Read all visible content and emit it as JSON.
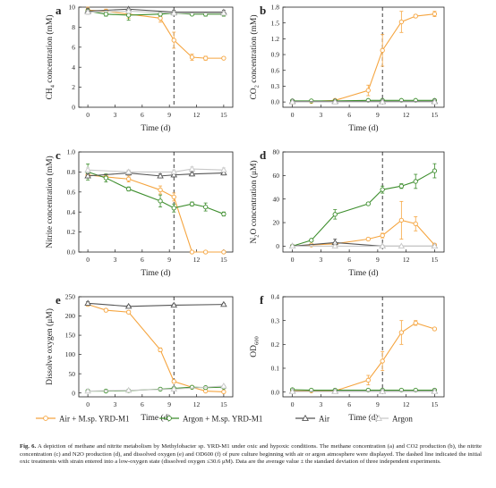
{
  "figure": {
    "caption_label": "Fig. 6.",
    "caption_text": "A depiction of methane and nitrite metabolism by Methylobacter sp. YRD-M1 under oxic and hypoxic conditions. The methane concentration (a) and CO2 production (b), the nitrite concentration (c) and N2O production (d), and dissolved oxygen (e) and OD600 (f) of pure culture beginning with air or argon atmosphere were displayed. The dashed line indicated the initial oxic treatments with strain entered into a low-oxygen state (dissolved oxygen ≤30.6 μM). Data are the average value ± the standard deviation of three independent experiments."
  },
  "legend": {
    "items": [
      {
        "label": "Air + M.sp. YRD-M1",
        "color": "#F5A540",
        "marker": "circle-open"
      },
      {
        "label": "Argon + M.sp. YRD-M1",
        "color": "#3E8E2E",
        "marker": "circle-open"
      },
      {
        "label": "Air",
        "color": "#555555",
        "marker": "triangle-open"
      },
      {
        "label": "Argon",
        "color": "#C8C8C8",
        "marker": "triangle-open"
      }
    ]
  },
  "chart_data": [
    {
      "panel": "a",
      "type": "line",
      "ylabel": "CH4 concentration (mM)",
      "xlabel": "Time (d)",
      "xlim": [
        -1,
        16
      ],
      "ylim": [
        0,
        10
      ],
      "xticks": [
        0,
        3,
        6,
        9,
        12,
        15
      ],
      "yticks": [
        0,
        2,
        4,
        6,
        8,
        10
      ],
      "dashed_x": 9.5,
      "series": [
        {
          "name": "Air + M.sp. YRD-M1",
          "x": [
            0,
            2,
            4.5,
            8,
            9.5,
            11.5,
            13,
            15
          ],
          "y": [
            9.7,
            9.6,
            9.3,
            8.9,
            6.7,
            5.0,
            4.9,
            4.9
          ],
          "err": [
            0.3,
            0.2,
            0.4,
            0.4,
            0.8,
            0.3,
            0.2,
            0.1
          ]
        },
        {
          "name": "Argon + M.sp. YRD-M1",
          "x": [
            0,
            2,
            4.5,
            8,
            9.5,
            11.5,
            13,
            15
          ],
          "y": [
            9.6,
            9.3,
            9.2,
            9.3,
            9.4,
            9.3,
            9.3,
            9.3
          ],
          "err": [
            0.2,
            0.2,
            0.5,
            0.2,
            0.2,
            0.1,
            0.2,
            0.2
          ]
        },
        {
          "name": "Air",
          "x": [
            0,
            4.5,
            9.5,
            15
          ],
          "y": [
            9.6,
            9.8,
            9.5,
            9.5
          ],
          "err": [
            0.3,
            0.2,
            0.2,
            0.2
          ]
        },
        {
          "name": "Argon",
          "x": [
            0,
            4.5,
            9.5,
            15
          ],
          "y": [
            9.5,
            9.6,
            9.4,
            9.4
          ],
          "err": [
            0.2,
            0.2,
            0.2,
            0.2
          ]
        }
      ]
    },
    {
      "panel": "b",
      "type": "line",
      "ylabel": "CO2 concentration (mM)",
      "xlabel": "Time (d)",
      "xlim": [
        -1,
        16
      ],
      "ylim": [
        -0.1,
        1.8
      ],
      "xticks": [
        0,
        3,
        6,
        9,
        12,
        15
      ],
      "yticks": [
        0.0,
        0.3,
        0.6,
        0.9,
        1.2,
        1.5,
        1.8
      ],
      "dashed_x": 9.5,
      "series": [
        {
          "name": "Air + M.sp. YRD-M1",
          "x": [
            0,
            2,
            4.5,
            8,
            9.5,
            11.5,
            13,
            15
          ],
          "y": [
            0.0,
            0.01,
            0.03,
            0.22,
            0.98,
            1.52,
            1.63,
            1.67
          ],
          "err": [
            0.01,
            0.01,
            0.02,
            0.1,
            0.3,
            0.2,
            0.03,
            0.05
          ]
        },
        {
          "name": "Argon + M.sp. YRD-M1",
          "x": [
            0,
            2,
            4.5,
            8,
            9.5,
            11.5,
            13,
            15
          ],
          "y": [
            0.02,
            0.02,
            0.02,
            0.03,
            0.03,
            0.03,
            0.03,
            0.03
          ],
          "err": [
            0.01,
            0.01,
            0.01,
            0.01,
            0.01,
            0.01,
            0.01,
            0.01
          ]
        },
        {
          "name": "Air",
          "x": [
            0,
            4.5,
            9.5,
            15
          ],
          "y": [
            0.01,
            0.01,
            0.01,
            0.01
          ],
          "err": [
            0.01,
            0.01,
            0.01,
            0.01
          ]
        },
        {
          "name": "Argon",
          "x": [
            0,
            4.5,
            9.5,
            15
          ],
          "y": [
            0.0,
            0.0,
            0.0,
            0.0
          ],
          "err": [
            0.01,
            0.01,
            0.01,
            0.01
          ]
        }
      ]
    },
    {
      "panel": "c",
      "type": "line",
      "ylabel": "Nitrite concentration (mM)",
      "xlabel": "Time (d)",
      "xlim": [
        -1,
        16
      ],
      "ylim": [
        0,
        1.0
      ],
      "xticks": [
        0,
        3,
        6,
        9,
        12,
        15
      ],
      "yticks": [
        0.0,
        0.2,
        0.4,
        0.6,
        0.8,
        1.0
      ],
      "dashed_x": 9.5,
      "series": [
        {
          "name": "Air + M.sp. YRD-M1",
          "x": [
            0,
            2,
            4.5,
            8,
            9.5,
            11.5,
            13,
            15
          ],
          "y": [
            0.77,
            0.75,
            0.73,
            0.62,
            0.55,
            0.0,
            0.0,
            0.0
          ],
          "err": [
            0.03,
            0.02,
            0.03,
            0.04,
            0.04,
            0.01,
            0.01,
            0.01
          ]
        },
        {
          "name": "Argon + M.sp. YRD-M1",
          "x": [
            0,
            2,
            4.5,
            8,
            9.5,
            11.5,
            13,
            15
          ],
          "y": [
            0.8,
            0.74,
            0.63,
            0.51,
            0.44,
            0.48,
            0.45,
            0.38
          ],
          "err": [
            0.08,
            0.04,
            0.02,
            0.06,
            0.04,
            0.02,
            0.04,
            0.02
          ]
        },
        {
          "name": "Air",
          "x": [
            0,
            4.5,
            8,
            9.5,
            11.5,
            15
          ],
          "y": [
            0.76,
            0.79,
            0.76,
            0.77,
            0.78,
            0.79
          ],
          "err": [
            0.02,
            0.02,
            0.02,
            0.02,
            0.02,
            0.02
          ]
        },
        {
          "name": "Argon",
          "x": [
            0,
            4.5,
            9.5,
            11.5,
            15
          ],
          "y": [
            0.82,
            0.8,
            0.8,
            0.83,
            0.82
          ],
          "err": [
            0.02,
            0.02,
            0.02,
            0.02,
            0.02
          ]
        }
      ]
    },
    {
      "panel": "d",
      "type": "line",
      "ylabel": "N2O concentration (μM)",
      "xlabel": "Time (d)",
      "xlim": [
        -1,
        16
      ],
      "ylim": [
        -5,
        80
      ],
      "xticks": [
        0,
        3,
        6,
        9,
        12,
        15
      ],
      "yticks": [
        0,
        20,
        40,
        60,
        80
      ],
      "dashed_x": 9.5,
      "series": [
        {
          "name": "Air + M.sp. YRD-M1",
          "x": [
            0,
            2,
            4.5,
            8,
            9.5,
            11.5,
            13,
            15
          ],
          "y": [
            0,
            1,
            2,
            6,
            9,
            22,
            19,
            1
          ],
          "err": [
            0.5,
            0.5,
            1,
            1,
            2,
            16,
            6,
            1
          ]
        },
        {
          "name": "Argon + M.sp. YRD-M1",
          "x": [
            0,
            2,
            4.5,
            8,
            9.5,
            11.5,
            13,
            15
          ],
          "y": [
            0,
            5,
            27,
            36,
            48,
            51,
            55,
            64
          ],
          "err": [
            0.5,
            1,
            4,
            1,
            3,
            2,
            6,
            6
          ]
        },
        {
          "name": "Air",
          "x": [
            0,
            4.5,
            9.5,
            15
          ],
          "y": [
            0,
            3,
            0,
            0
          ],
          "err": [
            0.5,
            3,
            0.5,
            0.5
          ]
        },
        {
          "name": "Argon",
          "x": [
            0,
            4.5,
            9.5,
            11.5,
            15
          ],
          "y": [
            0,
            0,
            0,
            0,
            0
          ],
          "err": [
            0.5,
            0.5,
            0.5,
            0.5,
            0.5
          ]
        }
      ]
    },
    {
      "panel": "e",
      "type": "line",
      "ylabel": "Dissolve oxygen (μM)",
      "xlabel": "Time (d)",
      "xlim": [
        -1,
        16
      ],
      "ylim": [
        -10,
        250
      ],
      "xticks": [
        0,
        3,
        6,
        9,
        12,
        15
      ],
      "yticks": [
        0,
        50,
        100,
        150,
        200,
        250
      ],
      "dashed_x": 9.5,
      "series": [
        {
          "name": "Air + M.sp. YRD-M1",
          "x": [
            0,
            2,
            4.5,
            8,
            9.5,
            11.5,
            13,
            15
          ],
          "y": [
            230,
            215,
            210,
            112,
            30,
            15,
            5,
            3
          ],
          "err": [
            4,
            4,
            4,
            5,
            4,
            3,
            2,
            2
          ]
        },
        {
          "name": "Argon + M.sp. YRD-M1",
          "x": [
            0,
            2,
            4.5,
            8,
            9.5,
            11.5,
            13,
            15
          ],
          "y": [
            5,
            5,
            6,
            10,
            12,
            15,
            14,
            15
          ],
          "err": [
            2,
            2,
            2,
            2,
            2,
            2,
            2,
            2
          ]
        },
        {
          "name": "Air",
          "x": [
            0,
            4.5,
            9.5,
            15
          ],
          "y": [
            233,
            225,
            228,
            230
          ],
          "err": [
            4,
            3,
            3,
            3
          ]
        },
        {
          "name": "Argon",
          "x": [
            0,
            4.5,
            9.5,
            15
          ],
          "y": [
            5,
            7,
            10,
            18
          ],
          "err": [
            2,
            2,
            2,
            2
          ]
        }
      ]
    },
    {
      "panel": "f",
      "type": "line",
      "ylabel": "OD600",
      "xlabel": "Time (d)",
      "xlim": [
        -1,
        16
      ],
      "ylim": [
        -0.02,
        0.4
      ],
      "xticks": [
        0,
        3,
        6,
        9,
        12,
        15
      ],
      "yticks": [
        0.0,
        0.1,
        0.2,
        0.3,
        0.4
      ],
      "dashed_x": 9.5,
      "series": [
        {
          "name": "Air + M.sp. YRD-M1",
          "x": [
            0,
            2,
            4.5,
            8,
            9.5,
            11.5,
            13,
            15
          ],
          "y": [
            0.005,
            0.005,
            0.005,
            0.05,
            0.13,
            0.25,
            0.29,
            0.265
          ],
          "err": [
            0.002,
            0.002,
            0.003,
            0.02,
            0.04,
            0.05,
            0.01,
            0.005
          ]
        },
        {
          "name": "Argon + M.sp. YRD-M1",
          "x": [
            0,
            2,
            4.5,
            8,
            9.5,
            11.5,
            13,
            15
          ],
          "y": [
            0.01,
            0.008,
            0.008,
            0.008,
            0.008,
            0.008,
            0.008,
            0.008
          ],
          "err": [
            0.002,
            0.002,
            0.002,
            0.002,
            0.002,
            0.002,
            0.002,
            0.002
          ]
        },
        {
          "name": "Air",
          "x": [
            0,
            4.5,
            9.5,
            15
          ],
          "y": [
            0.003,
            0.003,
            0.003,
            0.003
          ],
          "err": [
            0.002,
            0.002,
            0.002,
            0.002
          ]
        },
        {
          "name": "Argon",
          "x": [
            0,
            4.5,
            9.5,
            15
          ],
          "y": [
            0.002,
            0.002,
            0.002,
            0.002
          ],
          "err": [
            0.002,
            0.002,
            0.002,
            0.002
          ]
        }
      ]
    }
  ]
}
